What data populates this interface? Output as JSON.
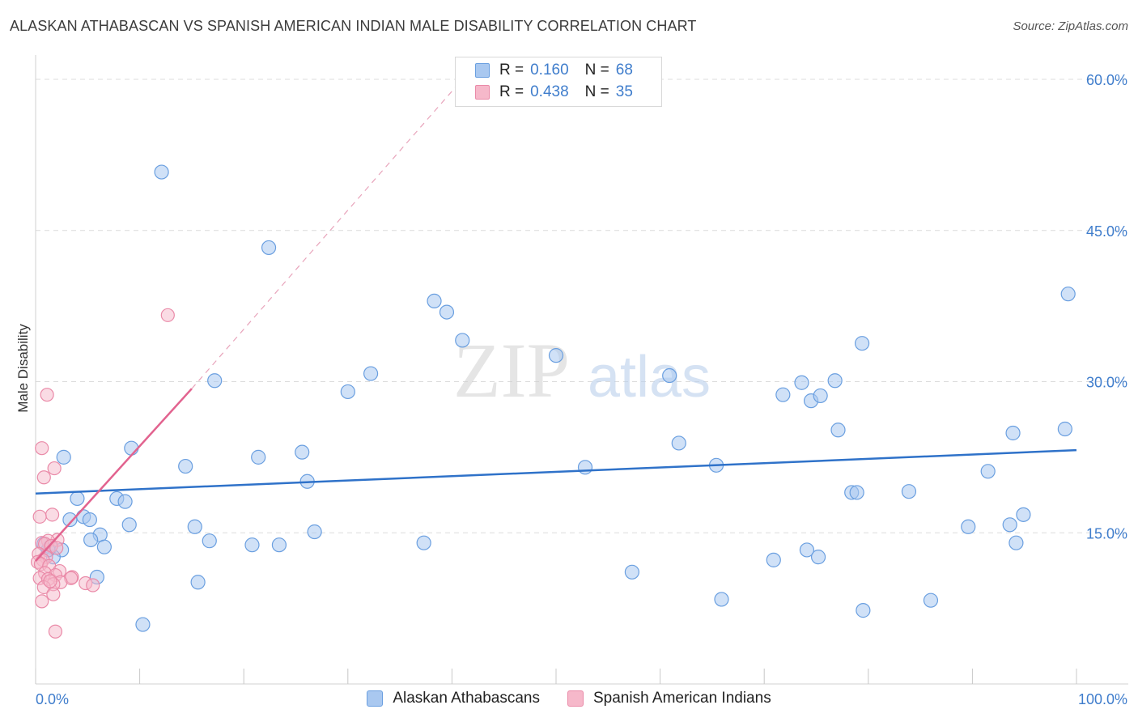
{
  "title": "ALASKAN ATHABASCAN VS SPANISH AMERICAN INDIAN MALE DISABILITY CORRELATION CHART",
  "source": "Source: ZipAtlas.com",
  "watermark": {
    "zip": "ZIP",
    "atlas": "atlas"
  },
  "colors": {
    "blue_fill": "#a9c8f0",
    "blue_stroke": "#6a9fe0",
    "blue_line": "#2f72c9",
    "pink_fill": "#f6b8ca",
    "pink_stroke": "#ea8aa8",
    "pink_line": "#e2638f",
    "tick_text": "#3f7dcc",
    "grid": "#dcdcdc"
  },
  "legend": {
    "rows": [
      {
        "r_label": "R =",
        "r_value": "0.160",
        "n_label": "N =",
        "n_value": "68",
        "color": "blue"
      },
      {
        "r_label": "R =",
        "r_value": "0.438",
        "n_label": "N =",
        "n_value": "35",
        "color": "pink"
      }
    ]
  },
  "chart_data": {
    "type": "scatter",
    "xlabel": "",
    "ylabel": "Male Disability",
    "xlim": [
      0,
      100
    ],
    "ylim": [
      0,
      60
    ],
    "x_tick_labels": [
      "0.0%",
      "100.0%"
    ],
    "y_ticks": [
      15,
      30,
      45,
      60
    ],
    "y_tick_labels": [
      "15.0%",
      "30.0%",
      "45.0%",
      "60.0%"
    ],
    "grid": true,
    "legend_position": "top-center",
    "series": [
      {
        "name": "Alaskan Athabascans",
        "color": "blue",
        "r": 0.16,
        "n": 68,
        "trend": {
          "x": [
            0,
            100
          ],
          "y": [
            18.9,
            23.2
          ]
        },
        "points": [
          [
            12.1,
            50.8
          ],
          [
            22.4,
            43.3
          ],
          [
            38.3,
            38.0
          ],
          [
            39.5,
            36.9
          ],
          [
            41.0,
            34.1
          ],
          [
            50.0,
            32.6
          ],
          [
            32.2,
            30.8
          ],
          [
            30.0,
            29.0
          ],
          [
            17.2,
            30.1
          ],
          [
            60.9,
            30.6
          ],
          [
            71.8,
            28.7
          ],
          [
            73.6,
            29.9
          ],
          [
            74.5,
            28.1
          ],
          [
            75.4,
            28.6
          ],
          [
            76.8,
            30.1
          ],
          [
            79.4,
            33.8
          ],
          [
            99.2,
            38.7
          ],
          [
            77.1,
            25.2
          ],
          [
            93.9,
            24.9
          ],
          [
            98.9,
            25.3
          ],
          [
            2.7,
            22.5
          ],
          [
            9.2,
            23.4
          ],
          [
            14.4,
            21.6
          ],
          [
            21.4,
            22.5
          ],
          [
            25.6,
            23.0
          ],
          [
            52.8,
            21.5
          ],
          [
            61.8,
            23.9
          ],
          [
            65.4,
            21.7
          ],
          [
            91.5,
            21.1
          ],
          [
            26.1,
            20.1
          ],
          [
            4.0,
            18.4
          ],
          [
            7.8,
            18.4
          ],
          [
            8.6,
            18.1
          ],
          [
            78.4,
            19.0
          ],
          [
            78.9,
            19.0
          ],
          [
            83.9,
            19.1
          ],
          [
            4.6,
            16.6
          ],
          [
            5.2,
            16.3
          ],
          [
            3.3,
            16.3
          ],
          [
            9.0,
            15.8
          ],
          [
            15.3,
            15.6
          ],
          [
            89.6,
            15.6
          ],
          [
            93.6,
            15.8
          ],
          [
            94.9,
            16.8
          ],
          [
            26.8,
            15.1
          ],
          [
            6.2,
            14.8
          ],
          [
            5.3,
            14.3
          ],
          [
            0.8,
            13.9
          ],
          [
            1.4,
            13.6
          ],
          [
            2.5,
            13.3
          ],
          [
            6.6,
            13.6
          ],
          [
            16.7,
            14.2
          ],
          [
            20.8,
            13.8
          ],
          [
            23.4,
            13.8
          ],
          [
            37.3,
            14.0
          ],
          [
            94.2,
            14.0
          ],
          [
            74.1,
            13.3
          ],
          [
            75.2,
            12.6
          ],
          [
            1.7,
            12.6
          ],
          [
            70.9,
            12.3
          ],
          [
            5.9,
            10.6
          ],
          [
            15.6,
            10.1
          ],
          [
            57.3,
            11.1
          ],
          [
            65.9,
            8.4
          ],
          [
            79.5,
            7.3
          ],
          [
            86.0,
            8.3
          ],
          [
            10.3,
            5.9
          ],
          [
            1.2,
            13.3
          ]
        ]
      },
      {
        "name": "Spanish American Indians",
        "color": "pink",
        "r": 0.438,
        "n": 35,
        "trend": {
          "x": [
            0,
            15
          ],
          "y": [
            12.2,
            29.3
          ],
          "dashed_extension": {
            "x": [
              15,
              41
            ],
            "y": [
              29.3,
              60.0
            ]
          }
        },
        "points": [
          [
            12.7,
            36.6
          ],
          [
            1.1,
            28.7
          ],
          [
            0.6,
            23.4
          ],
          [
            1.8,
            21.4
          ],
          [
            0.8,
            20.5
          ],
          [
            1.6,
            16.8
          ],
          [
            0.4,
            16.6
          ],
          [
            2.1,
            14.3
          ],
          [
            1.2,
            14.2
          ],
          [
            0.6,
            14.0
          ],
          [
            0.9,
            13.9
          ],
          [
            1.5,
            13.7
          ],
          [
            2.0,
            13.5
          ],
          [
            0.3,
            12.9
          ],
          [
            1.0,
            12.6
          ],
          [
            0.7,
            12.3
          ],
          [
            0.2,
            12.1
          ],
          [
            0.5,
            11.9
          ],
          [
            1.3,
            11.7
          ],
          [
            2.3,
            11.2
          ],
          [
            0.9,
            11.0
          ],
          [
            1.9,
            10.8
          ],
          [
            0.4,
            10.5
          ],
          [
            3.5,
            10.6
          ],
          [
            3.4,
            10.5
          ],
          [
            1.2,
            10.4
          ],
          [
            2.4,
            10.1
          ],
          [
            1.7,
            9.9
          ],
          [
            4.8,
            10.0
          ],
          [
            5.5,
            9.8
          ],
          [
            0.8,
            9.6
          ],
          [
            1.7,
            8.9
          ],
          [
            0.6,
            8.2
          ],
          [
            1.9,
            5.2
          ],
          [
            1.4,
            10.2
          ]
        ]
      }
    ]
  }
}
